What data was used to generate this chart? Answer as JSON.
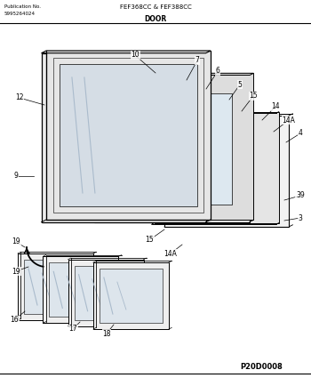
{
  "pub_no_label": "Publication No.",
  "pub_no_value": "5995264024",
  "model": "FEF368CC & FEF388CC",
  "section": "DOOR",
  "diagram_id": "P20D0008",
  "bg_color": "#ffffff",
  "line_color": "#000000",
  "fig_width": 3.5,
  "fig_height": 4.34,
  "dpi": 100
}
